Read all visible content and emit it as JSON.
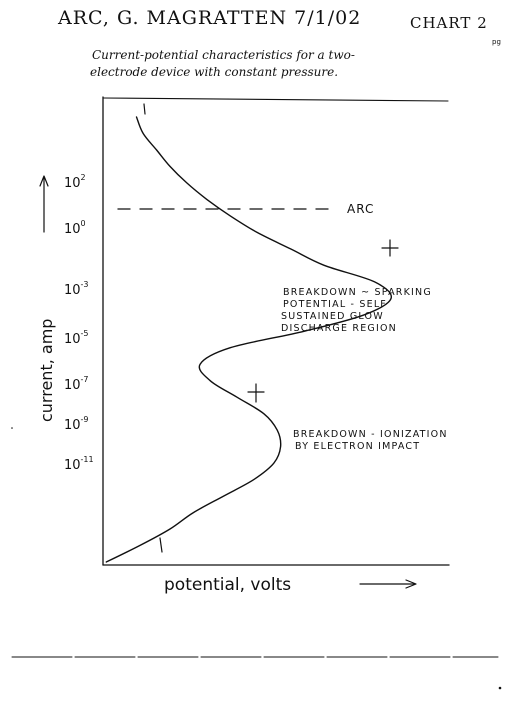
{
  "header": {
    "title": "ARC, G. MAGRATTEN 7/1/02",
    "chart_label": "CHART 2",
    "page_mark": "pg",
    "description_line1": "Current-potential characteristics for a two-",
    "description_line2": "electrode device with constant pressure."
  },
  "chart_data": {
    "type": "line",
    "title": "Current-potential characteristics for a two-electrode device with constant pressure.",
    "xlabel": "potential, volts",
    "ylabel": "current, amp",
    "y_scale": "log",
    "y_tick_labels": [
      "10^2",
      "10^0",
      "10^-3",
      "10^-5",
      "10^-7",
      "10^-9",
      "10^-11"
    ],
    "y_tick_exponents": [
      2,
      0,
      -3,
      -5,
      -7,
      -9,
      -11
    ],
    "x_tick_labels": [],
    "grid": false,
    "legend": "none",
    "annotations": [
      "ARC",
      "BREAKDOWN ~ SPARKING POTENTIAL - SELF SUSTAINED GLOW DISCHARGE REGION",
      "BREAKDOWN - IONIZATION BY ELECTRON IMPACT"
    ],
    "arc_level_log10_current": 1.2,
    "curve_log10_current": [
      4.5,
      4.0,
      3.5,
      3.0,
      2.5,
      2.0,
      1.5,
      1.0,
      0.5,
      0.3,
      0.0,
      -0.3,
      -0.8,
      -1.5,
      -2.5,
      -3.5,
      -4.5,
      -5.5,
      -6.5,
      -7.5,
      -8.5,
      -9.5,
      -10.5,
      -11.5,
      -12.5,
      -13.5,
      -14.5,
      -15.5
    ],
    "curve_potential_relative": [
      0.1,
      0.12,
      0.16,
      0.2,
      0.25,
      0.31,
      0.38,
      0.46,
      0.56,
      0.66,
      0.81,
      0.86,
      0.78,
      0.6,
      0.38,
      0.29,
      0.32,
      0.4,
      0.48,
      0.52,
      0.53,
      0.51,
      0.45,
      0.36,
      0.27,
      0.2,
      0.11,
      0.01
    ]
  }
}
